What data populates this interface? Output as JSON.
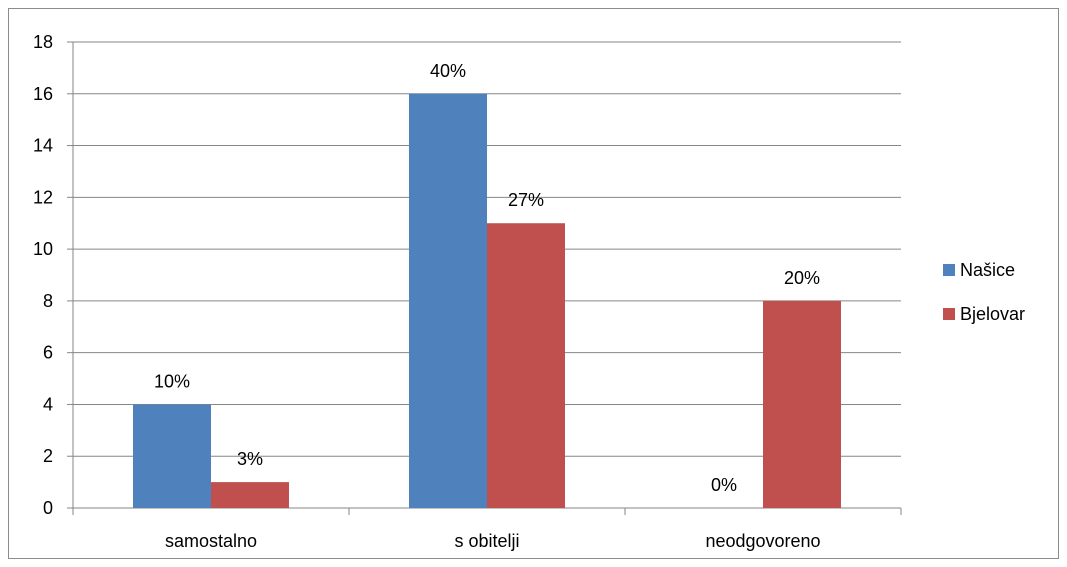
{
  "chart_data": {
    "type": "bar",
    "title": "",
    "xlabel": "",
    "ylabel": "",
    "categories": [
      "samostalno",
      "s obitelji",
      "neodgovoreno"
    ],
    "series": [
      {
        "name": "Našice",
        "color": "#4f81bd",
        "values": [
          4,
          16,
          0
        ],
        "labels": [
          "10%",
          "40%",
          "0%"
        ]
      },
      {
        "name": "Bjelovar",
        "color": "#c0504d",
        "values": [
          1,
          11,
          8
        ],
        "labels": [
          "3%",
          "27%",
          "20%"
        ]
      }
    ],
    "ylim": [
      0,
      18
    ],
    "yticks": [
      0,
      2,
      4,
      6,
      8,
      10,
      12,
      14,
      16,
      18
    ],
    "grid": true,
    "legend_position": "right"
  }
}
